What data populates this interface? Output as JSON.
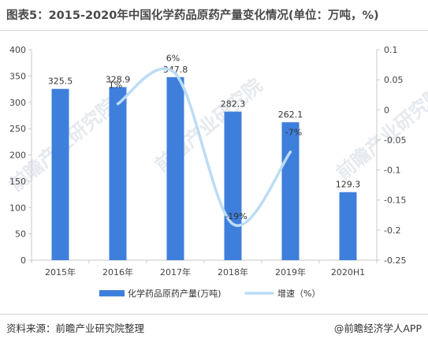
{
  "title": "图表5：2015-2020年中国化学药品原药产量变化情况(单位：万吨，%)",
  "footer": {
    "source": "资料来源：前瞻产业研究院整理",
    "brand": "@前瞻经济学人APP"
  },
  "colors": {
    "bar": "#3f7fdc",
    "line": "#bcdcf5",
    "axis": "#c8c8c8",
    "tick_text": "#444444",
    "label_text": "#333333",
    "rule": "#d6d6d6",
    "watermark": "#dde3ea"
  },
  "watermark_text": "前瞻产业研究院",
  "chart_data": {
    "type": "bar",
    "categories": [
      "2015年",
      "2016年",
      "2017年",
      "2018年",
      "2019年",
      "2020H1"
    ],
    "series": [
      {
        "name": "化学药品原药产量(万吨)",
        "type": "bar",
        "axis": "left",
        "values": [
          325.5,
          328.9,
          347.8,
          282.3,
          262.1,
          129.3
        ],
        "labels": [
          "325.5",
          "328.9",
          "347.8",
          "282.3",
          "262.1",
          "129.3"
        ]
      },
      {
        "name": "增速（%）",
        "type": "line",
        "axis": "right",
        "values": [
          null,
          0.01,
          0.06,
          -0.19,
          -0.07,
          null
        ],
        "labels": [
          null,
          "1%",
          "6%",
          "-19%",
          "-7%",
          null
        ]
      }
    ],
    "y_left": {
      "min": 0,
      "max": 400,
      "ticks": [
        0,
        50,
        100,
        150,
        200,
        250,
        300,
        350,
        400
      ],
      "tick_labels": [
        "0",
        "50",
        "100",
        "150",
        "200",
        "250",
        "300",
        "350",
        "400"
      ]
    },
    "y_right": {
      "min": -0.25,
      "max": 0.1,
      "ticks": [
        0.1,
        0.05,
        0,
        -0.05,
        -0.1,
        -0.15,
        -0.2,
        -0.25
      ],
      "tick_labels": [
        "0.1",
        "0.05",
        "0",
        "-0.05",
        "-0.1",
        "-0.15",
        "-0.2",
        "-0.25"
      ]
    },
    "grid": false,
    "legend": {
      "position": "bottom"
    }
  }
}
